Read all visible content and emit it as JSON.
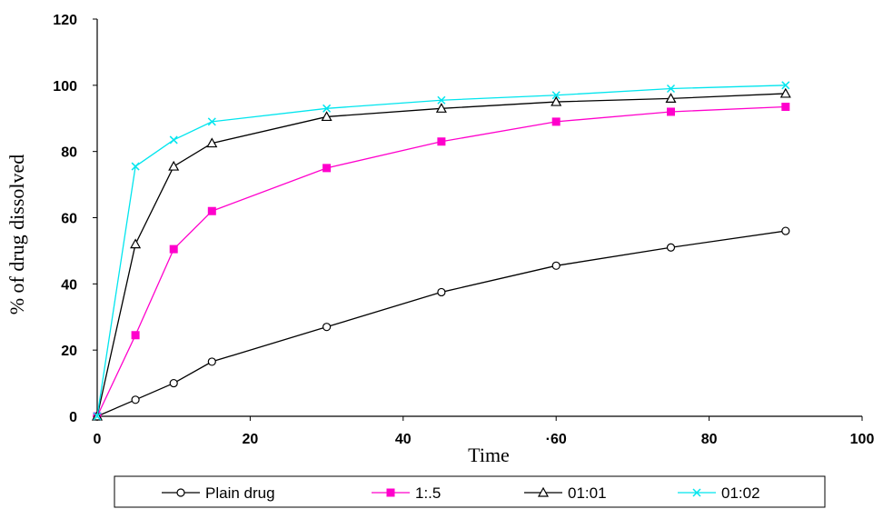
{
  "chart_data": {
    "type": "line",
    "xlabel": "Time",
    "ylabel": "% of drug dissolved",
    "xlim": [
      0,
      100
    ],
    "ylim": [
      0,
      120
    ],
    "xticks": [
      "0",
      "20",
      "40",
      "·60",
      "80",
      "100"
    ],
    "yticks": [
      "0",
      "20",
      "40",
      "60",
      "80",
      "100",
      "120"
    ],
    "grid": false,
    "legend_position": "bottom",
    "x": [
      0,
      5,
      10,
      15,
      30,
      45,
      60,
      75,
      90
    ],
    "series": [
      {
        "name": "Plain drug",
        "color": "#000000",
        "marker": "open-circle",
        "values": [
          0,
          5,
          10,
          16.5,
          27,
          37.5,
          45.5,
          51,
          56
        ]
      },
      {
        "name": "1:.5",
        "color": "#ff00cc",
        "marker": "filled-square",
        "values": [
          0,
          24.5,
          50.5,
          62,
          75,
          83,
          89,
          92,
          93.5
        ]
      },
      {
        "name": "01:01",
        "color": "#000000",
        "marker": "open-triangle",
        "values": [
          0,
          52,
          75.5,
          82.5,
          90.5,
          93,
          95,
          96,
          97.5
        ]
      },
      {
        "name": "01:02",
        "color": "#00e5ee",
        "marker": "x",
        "values": [
          0,
          75.5,
          83.5,
          89,
          93,
          95.5,
          97,
          99,
          100
        ]
      }
    ]
  }
}
